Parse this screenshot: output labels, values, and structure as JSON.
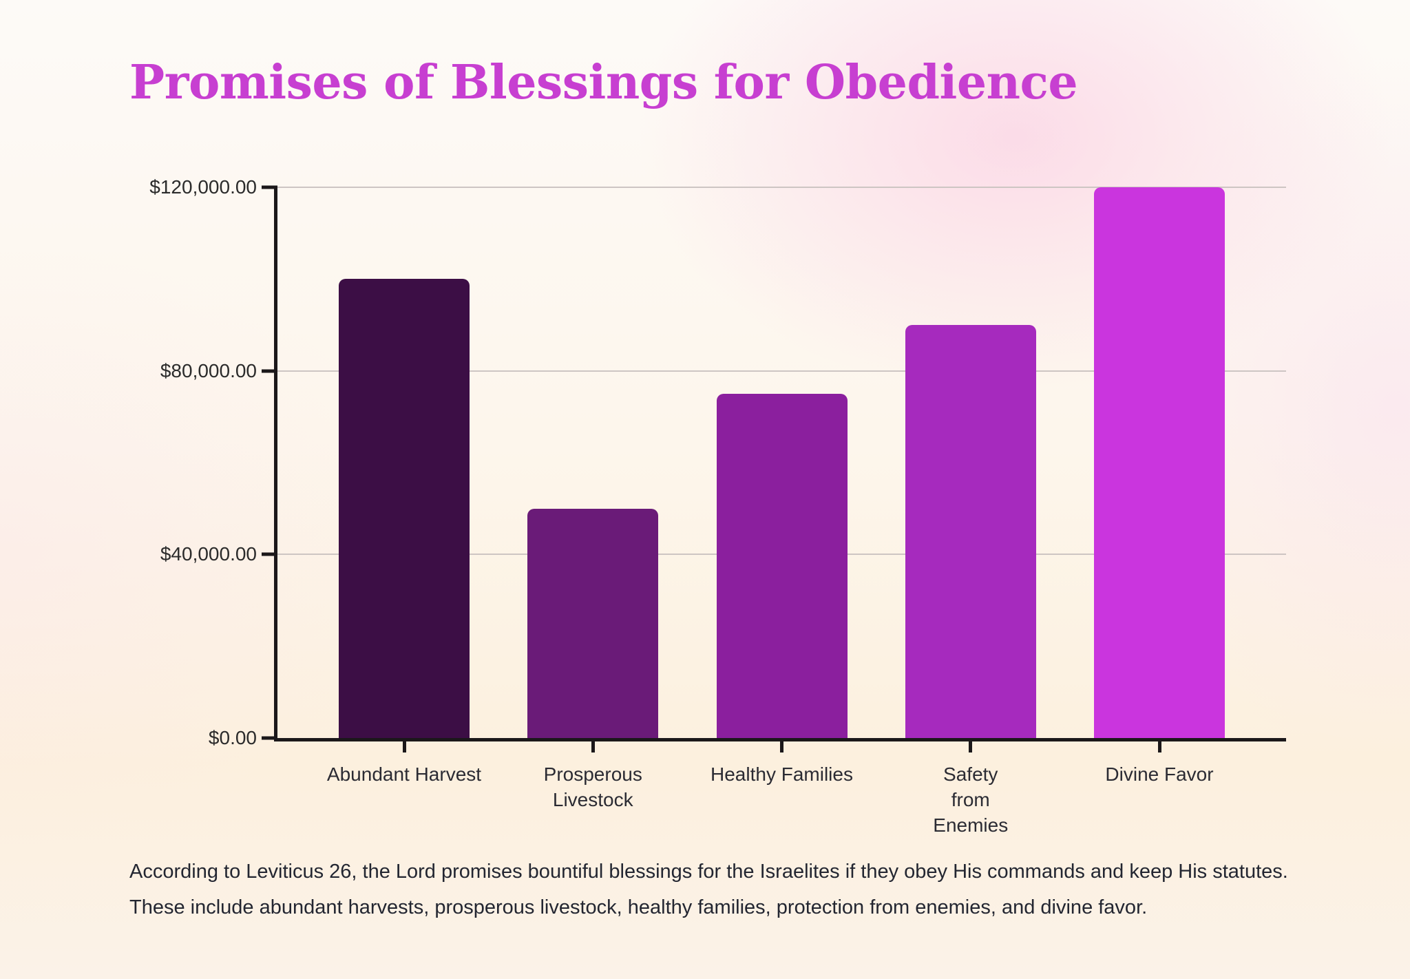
{
  "title": "Promises of Blessings for Obedience",
  "caption": {
    "line1": "According to Leviticus 26, the Lord promises bountiful blessings for the Israelites if they obey His commands and keep His statutes.",
    "line2": "These include abundant harvests, prosperous livestock, healthy families, protection from enemies, and divine favor."
  },
  "chart_data": {
    "type": "bar",
    "title": "Promises of Blessings for Obedience",
    "categories": [
      "Abundant Harvest",
      "Prosperous Livestock",
      "Healthy Families",
      "Safety from Enemies",
      "Divine Favor"
    ],
    "category_display": [
      "Abundant Harvest",
      "Prosperous\nLivestock",
      "Healthy Families",
      "Safety\nfrom\nEnemies",
      "Divine Favor"
    ],
    "values": [
      100000,
      50000,
      75000,
      90000,
      120000
    ],
    "value_format": "$#,##0.00",
    "bar_colors": [
      "#3c0e45",
      "#6a1b78",
      "#8b1f9e",
      "#a62abe",
      "#ca35de"
    ],
    "y_tick_labels": [
      "$120,000.00",
      "$80,000.00",
      "$40,000.00",
      "$0.00"
    ],
    "y_tick_values": [
      120000,
      80000,
      40000,
      0
    ],
    "ylim": [
      0,
      120000
    ],
    "xlabel": "",
    "ylabel": "",
    "grid": "horizontal",
    "legend": "none"
  },
  "colors": {
    "title": "#c73fd1",
    "axis": "#1b181a",
    "gridline": "#cdc5c3",
    "axis_text": "#2b2b2b",
    "caption_text": "#232631"
  }
}
